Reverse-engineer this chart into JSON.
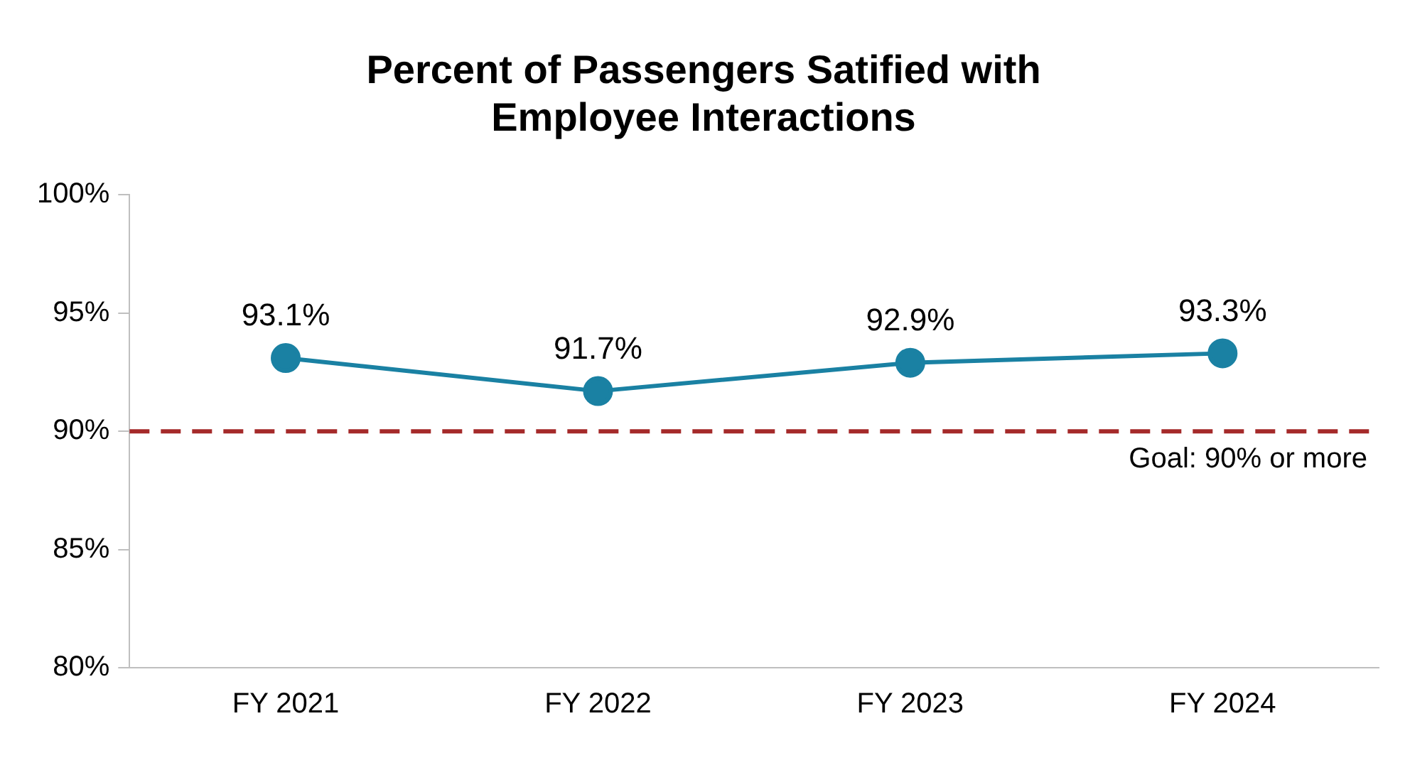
{
  "chart_data": {
    "type": "line",
    "title": "Percent of Passengers Satified with\nEmployee Interactions",
    "categories": [
      "FY 2021",
      "FY 2022",
      "FY 2023",
      "FY 2024"
    ],
    "series": [
      {
        "color": "#1a81a3",
        "values": [
          93.1,
          91.7,
          92.9,
          93.3
        ],
        "value_labels": [
          "93.1%",
          "91.7%",
          "92.9%",
          "93.3%"
        ]
      }
    ],
    "ylim": [
      80,
      100
    ],
    "yticks": [
      {
        "value": 80,
        "label": "80%"
      },
      {
        "value": 85,
        "label": "85%"
      },
      {
        "value": 90,
        "label": "90%"
      },
      {
        "value": 95,
        "label": "95%"
      },
      {
        "value": 100,
        "label": "100%"
      }
    ],
    "ref_lines": [
      {
        "axis": "y",
        "value": 90,
        "label": "Goal: 90% or more",
        "color": "#a52a2a",
        "line_style": "dashed"
      }
    ],
    "marker": "circle",
    "line_style": "solid",
    "grid": false,
    "legend": false
  }
}
